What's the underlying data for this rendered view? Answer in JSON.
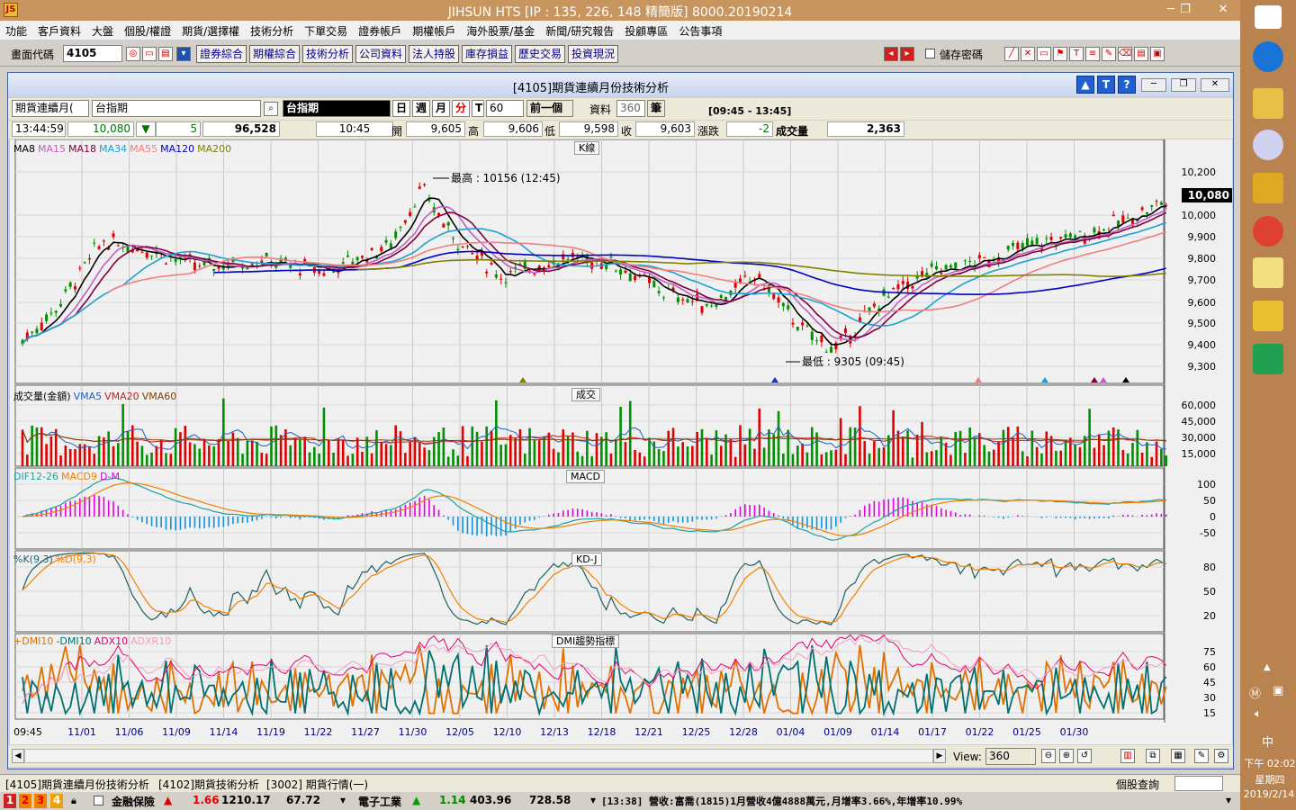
{
  "window": {
    "title": "JIHSUN HTS     [IP : 135, 226, 148 精簡版] 8000.20190214",
    "min": "─",
    "restore": "❐",
    "close": "✕"
  },
  "menu": [
    "功能",
    "客戶資料",
    "大盤",
    "個股/權證",
    "期貨/選擇權",
    "技術分析",
    "下單交易",
    "證券帳戶",
    "期權帳戶",
    "海外股票/基金",
    "新聞/研究報告",
    "投顧專區",
    "公告事項"
  ],
  "toolbar": {
    "code_label": "畫面代碼",
    "code_value": "4105",
    "buttons": [
      "證券綜合",
      "期權綜合",
      "技術分析",
      "公司資料",
      "法人持股",
      "庫存損益",
      "歷史交易",
      "投資現況"
    ],
    "save_pwd": "儲存密碼"
  },
  "child": {
    "title": "[4105]期貨連續月份技術分析",
    "product_type": "期貨連續月(",
    "product_name": "台指期",
    "product_display": "台指期",
    "periods": [
      "日",
      "週",
      "月",
      "分",
      "T"
    ],
    "interval": "60",
    "prev": "前一個",
    "data_label": "資料",
    "data_count": "360",
    "unit": "筆",
    "time_range": "[09:45 - 13:45]"
  },
  "quote": {
    "time": "13:44:59",
    "price": "10,080",
    "arrow": "▼",
    "change": "5",
    "volume_total": "96,528",
    "bar_time": "10:45",
    "open_label": "開",
    "open": "9,605",
    "high_label": "高",
    "high": "9,606",
    "low_label": "低",
    "low": "9,598",
    "close_label": "收",
    "close": "9,603",
    "chg_label": "漲跌",
    "chg": "-2",
    "vol_label": "成交量",
    "vol": "2,363"
  },
  "panels": {
    "k": {
      "title": "K線",
      "legend": [
        [
          "MA8",
          "#000000"
        ],
        [
          "MA15",
          "#c060c0"
        ],
        [
          "MA18",
          "#800040"
        ],
        [
          "MA34",
          "#20a0d0"
        ],
        [
          "MA55",
          "#f08080"
        ],
        [
          "MA120",
          "#0000c0"
        ],
        [
          "MA200",
          "#808000"
        ]
      ],
      "yticks": [
        "10,200",
        "10,000",
        "9,900",
        "9,800",
        "9,700",
        "9,600",
        "9,500",
        "9,400",
        "9,300"
      ],
      "high_note": "最高 : 10156 (12:45)",
      "low_note": "最低 : 9305 (09:45)",
      "last": "10,080"
    },
    "vol": {
      "title": "成交",
      "legend": [
        [
          "成交量(金額)",
          "#000000"
        ],
        [
          "VMA5",
          "#2060c0"
        ],
        [
          "VMA20",
          "#c02020"
        ],
        [
          "VMA60",
          "#804000"
        ]
      ],
      "yticks": [
        "60,000",
        "45,000",
        "30,000",
        "15,000"
      ]
    },
    "macd": {
      "title": "MACD",
      "legend": [
        [
          "DIF12-26",
          "#20a0a0"
        ],
        [
          "MACD9",
          "#f08000"
        ],
        [
          "D-M",
          "#e000e0"
        ]
      ],
      "yticks": [
        "100",
        "50",
        "0",
        "-50"
      ]
    },
    "kd": {
      "title": "KD-J",
      "legend": [
        [
          "%K(9,3)",
          "#206060"
        ],
        [
          "%D(9,3)",
          "#f08000"
        ]
      ],
      "yticks": [
        "80",
        "50",
        "20"
      ]
    },
    "dmi": {
      "title": "DMI趨勢指標",
      "legend": [
        [
          "+DMI10",
          "#e07000"
        ],
        [
          "-DMI10",
          "#007070"
        ],
        [
          "ADX10",
          "#e00070"
        ],
        [
          "ADXR10",
          "#f0a0c0"
        ]
      ],
      "yticks": [
        "75",
        "60",
        "45",
        "30",
        "15"
      ]
    }
  },
  "xticks": [
    "09:45",
    "11/01",
    "11/06",
    "11/09",
    "11/14",
    "11/19",
    "11/22",
    "11/27",
    "11/30",
    "12/05",
    "12/10",
    "12/13",
    "12/18",
    "12/21",
    "12/25",
    "12/28",
    "01/04",
    "01/09",
    "01/14",
    "01/17",
    "01/22",
    "01/25",
    "01/30"
  ],
  "view": {
    "label": "View:",
    "value": "360"
  },
  "tabs": [
    "[4105]期貨連續月份技術分析",
    "[4102]期貨技術分析",
    "[3002] 期貨行情(一)"
  ],
  "stock_query": "個股查詢",
  "ticker": {
    "nums": [
      "1",
      "2",
      "3",
      "4"
    ],
    "sector1": "金融保險",
    "s1_chg": "1.66",
    "s1_idx": "1210.17",
    "s1_vol": "67.72",
    "sector2": "電子工業",
    "s2_chg": "1.14",
    "s2_idx": "403.96",
    "s2_vol": "728.58",
    "news": "[13:38] 營收:富喬(1815)1月營收4億4888萬元,月增率3.66%,年增率10.99%"
  },
  "clock": {
    "time": "下午 02:02",
    "weekday": "星期四",
    "date": "2019/2/14",
    "ime": "中"
  }
}
